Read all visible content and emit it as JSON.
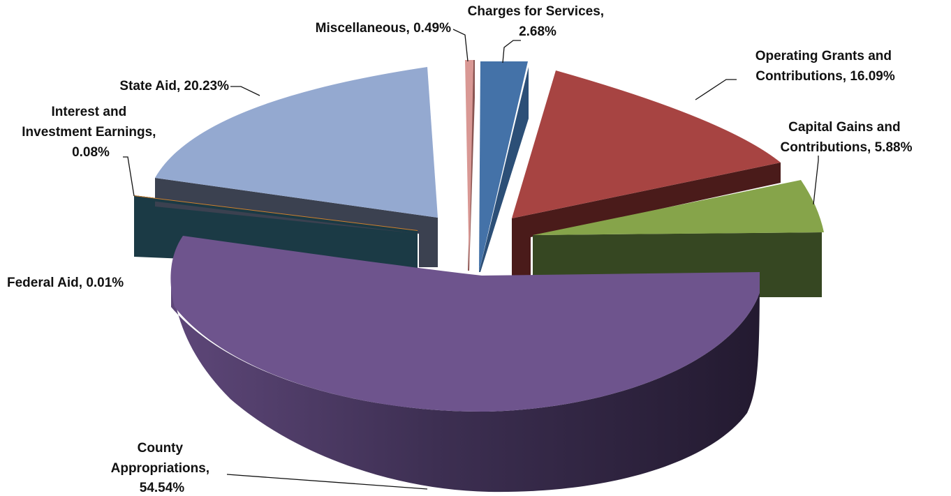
{
  "chart_data": {
    "type": "pie",
    "style": "3d-exploded",
    "slices": [
      {
        "key": "charges",
        "label_lines": [
          "Charges for Services,",
          "2.68%"
        ],
        "value": 2.68,
        "color": "#4472a8"
      },
      {
        "key": "operating",
        "label_lines": [
          "Operating Grants and",
          "Contributions,  16.09%"
        ],
        "value": 16.09,
        "color": "#a74442"
      },
      {
        "key": "capital",
        "label_lines": [
          "Capital Gains and",
          "Contributions,  5.88%"
        ],
        "value": 5.88,
        "color": "#86a44a"
      },
      {
        "key": "county",
        "label_lines": [
          "County",
          "Appropriations,",
          "54.54%"
        ],
        "value": 54.54,
        "color": "#6e548d"
      },
      {
        "key": "federal",
        "label_lines": [
          "Federal Aid, 0.01%"
        ],
        "value": 0.01,
        "color": "#1b3a45"
      },
      {
        "key": "interest",
        "label_lines": [
          "Interest and",
          "Investment Earnings,",
          "0.08%"
        ],
        "value": 0.08,
        "color": "#d0802e"
      },
      {
        "key": "state",
        "label_lines": [
          "State Aid, 20.23%"
        ],
        "value": 20.23,
        "color": "#94a9d0"
      },
      {
        "key": "misc",
        "label_lines": [
          "Miscellaneous, 0.49%"
        ],
        "value": 0.49,
        "color": "#d99894"
      }
    ]
  }
}
